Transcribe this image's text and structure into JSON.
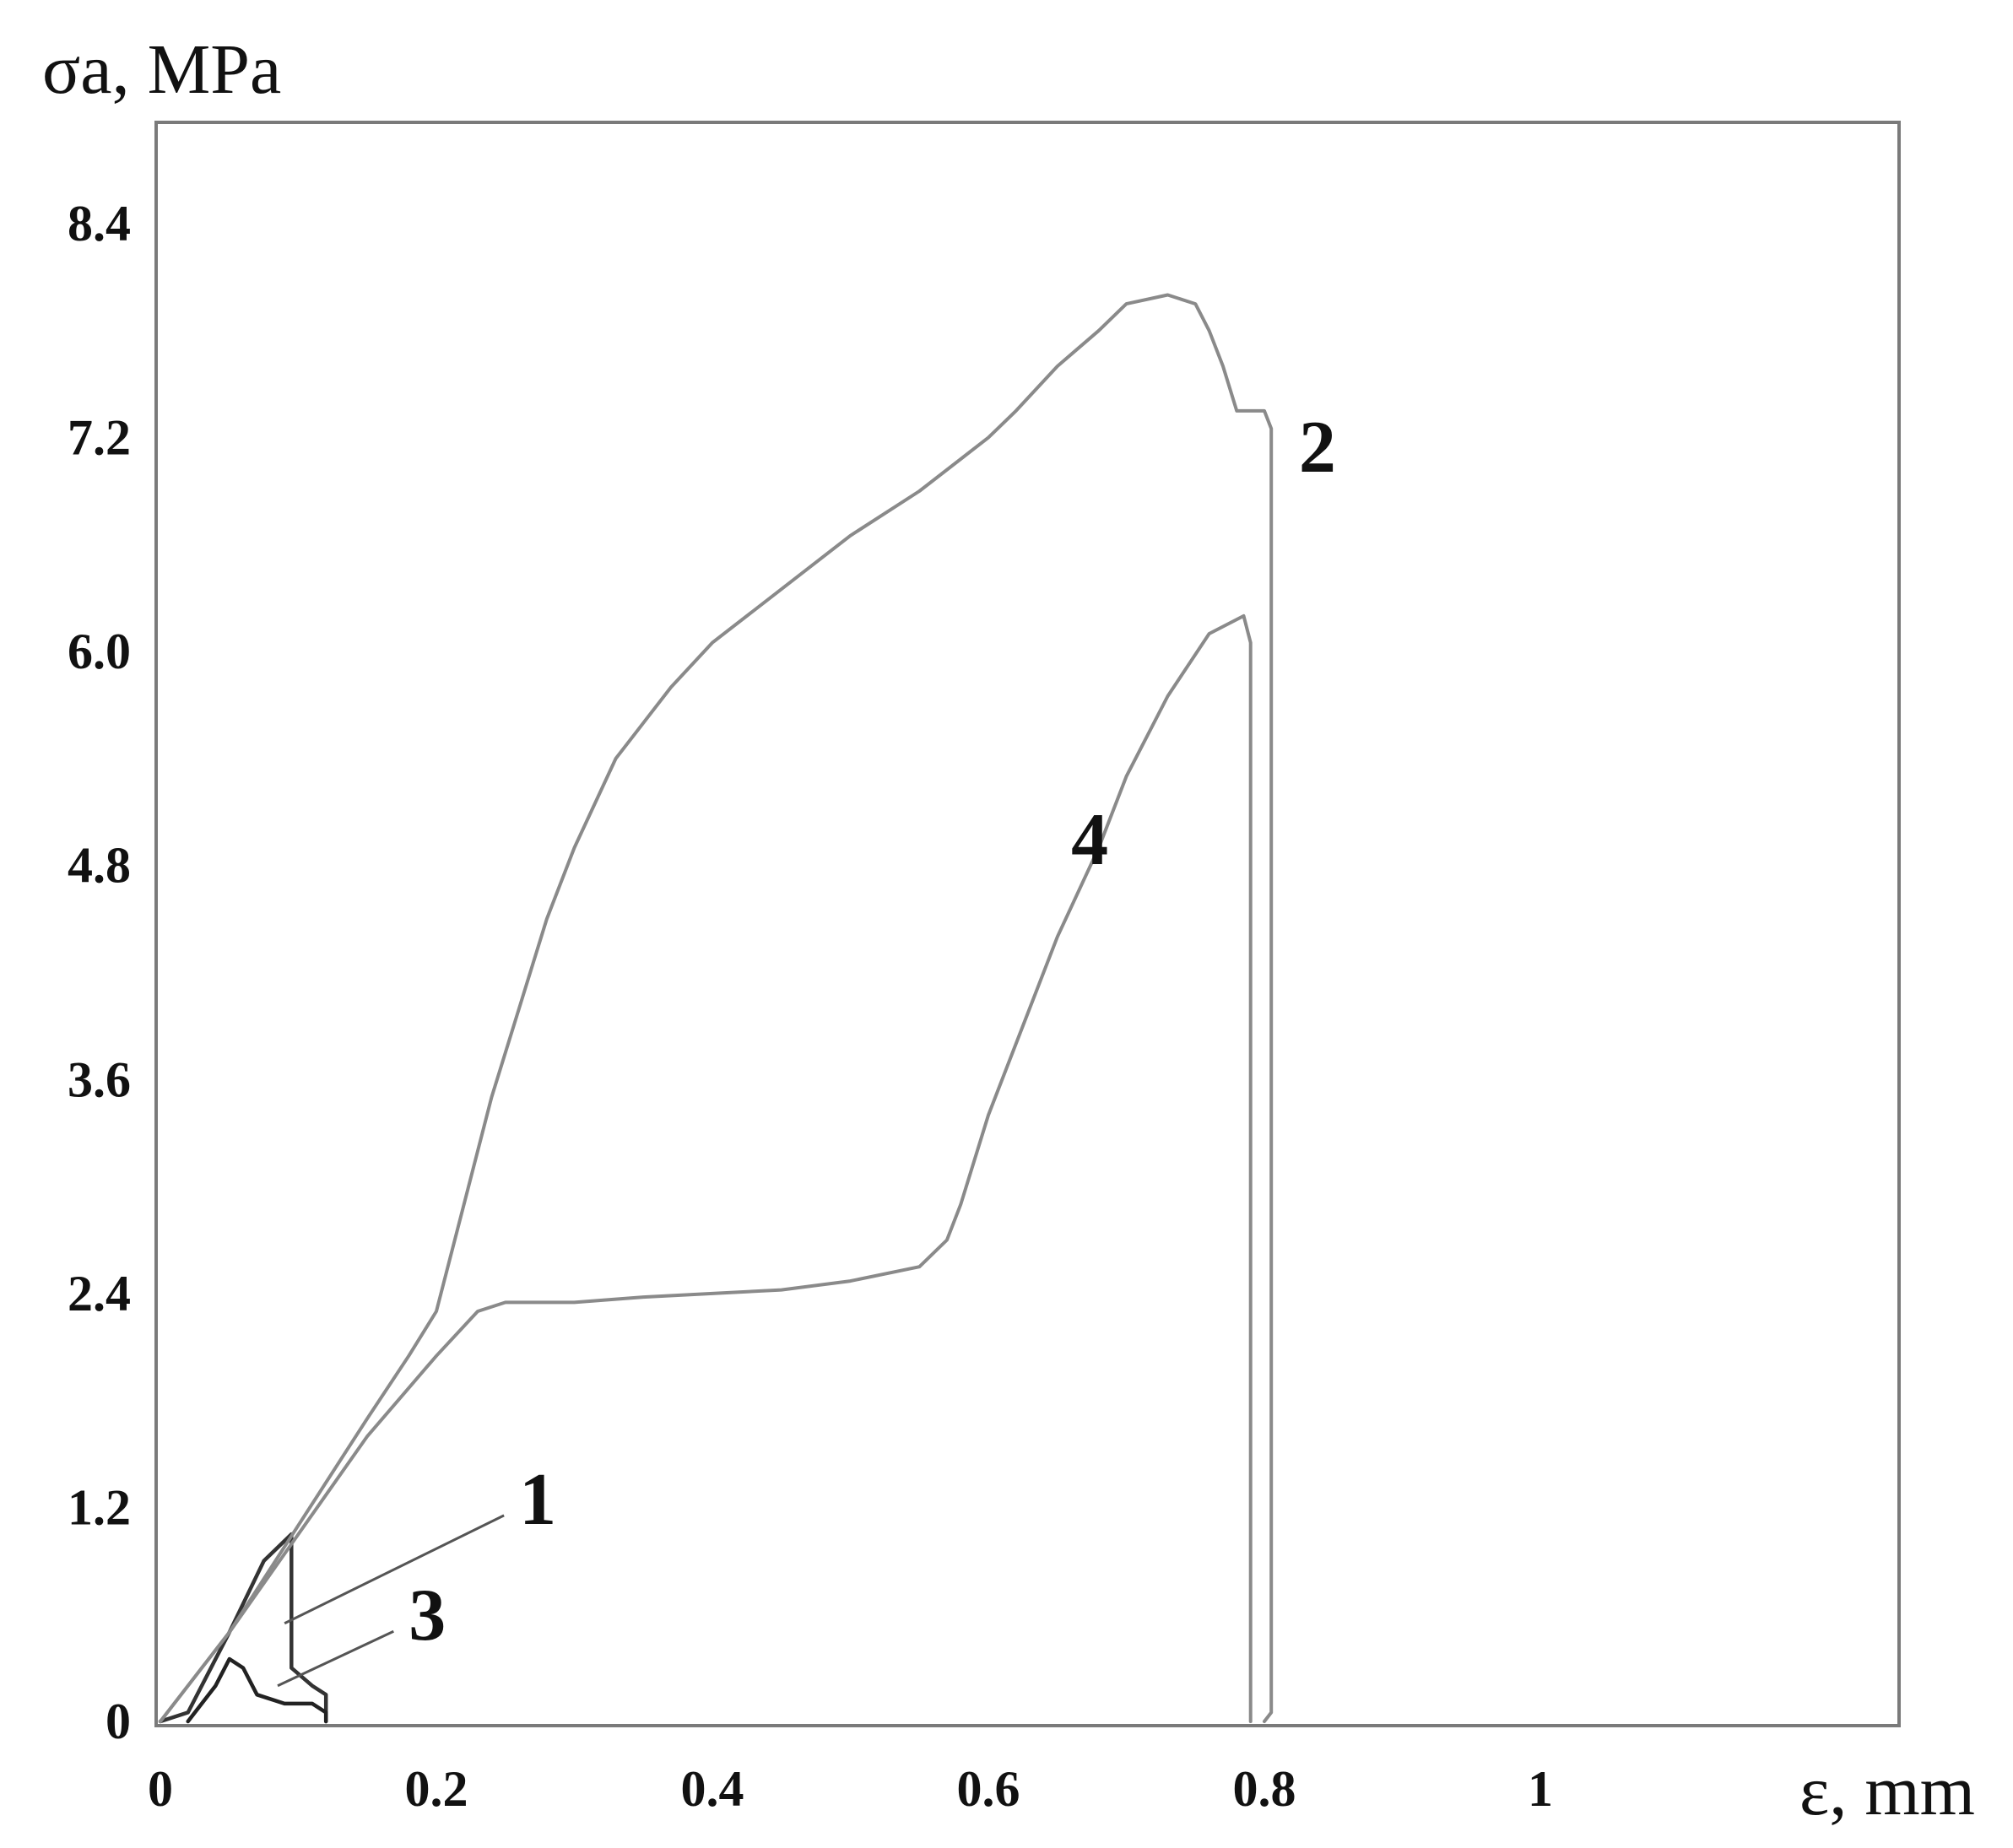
{
  "chart_data": {
    "type": "line",
    "ylabel": "σa, MPa",
    "xlabel": "ε, mm",
    "xlim": [
      0,
      1.2
    ],
    "ylim": [
      0,
      8.8
    ],
    "x_ticks": [
      {
        "value": 0,
        "label": "0"
      },
      {
        "value": 0.2,
        "label": "0.2"
      },
      {
        "value": 0.4,
        "label": "0.4"
      },
      {
        "value": 0.6,
        "label": "0.6"
      },
      {
        "value": 0.8,
        "label": "0.8"
      },
      {
        "value": 1.0,
        "label": "1"
      }
    ],
    "y_ticks": [
      {
        "value": 0,
        "label": "0"
      },
      {
        "value": 1.2,
        "label": "1.2"
      },
      {
        "value": 2.4,
        "label": "2.4"
      },
      {
        "value": 3.6,
        "label": "3.6"
      },
      {
        "value": 4.8,
        "label": "4.8"
      },
      {
        "value": 6.0,
        "label": "6.0"
      },
      {
        "value": 7.2,
        "label": "7.2"
      },
      {
        "value": 8.4,
        "label": "8.4"
      }
    ],
    "grid": false,
    "series": [
      {
        "label": "1",
        "color": "#333333",
        "label_at": [
          0.26,
          1.25
        ],
        "leader_to": [
          0.09,
          0.55
        ],
        "points": [
          [
            0,
            0
          ],
          [
            0.02,
            0.05
          ],
          [
            0.05,
            0.5
          ],
          [
            0.075,
            0.9
          ],
          [
            0.095,
            1.05
          ],
          [
            0.095,
            0.6
          ],
          [
            0.095,
            0.3
          ],
          [
            0.11,
            0.2
          ],
          [
            0.12,
            0.15
          ],
          [
            0.12,
            0
          ]
        ]
      },
      {
        "label": "2",
        "color": "#8a8a8a",
        "label_at": [
          0.825,
          7.15
        ],
        "points": [
          [
            0,
            0
          ],
          [
            0.05,
            0.5
          ],
          [
            0.1,
            1.1
          ],
          [
            0.15,
            1.7
          ],
          [
            0.18,
            2.05
          ],
          [
            0.2,
            2.3
          ],
          [
            0.22,
            2.9
          ],
          [
            0.24,
            3.5
          ],
          [
            0.26,
            4.0
          ],
          [
            0.28,
            4.5
          ],
          [
            0.3,
            4.9
          ],
          [
            0.33,
            5.4
          ],
          [
            0.37,
            5.8
          ],
          [
            0.4,
            6.05
          ],
          [
            0.45,
            6.35
          ],
          [
            0.5,
            6.65
          ],
          [
            0.55,
            6.9
          ],
          [
            0.6,
            7.2
          ],
          [
            0.62,
            7.35
          ],
          [
            0.65,
            7.6
          ],
          [
            0.68,
            7.8
          ],
          [
            0.7,
            7.95
          ],
          [
            0.73,
            8.0
          ],
          [
            0.75,
            7.95
          ],
          [
            0.76,
            7.8
          ],
          [
            0.77,
            7.6
          ],
          [
            0.78,
            7.35
          ],
          [
            0.8,
            7.35
          ],
          [
            0.805,
            7.25
          ],
          [
            0.805,
            6.0
          ],
          [
            0.805,
            0.05
          ],
          [
            0.8,
            0.0
          ]
        ]
      },
      {
        "label": "3",
        "color": "#222222",
        "label_at": [
          0.18,
          0.6
        ],
        "leader_to": [
          0.085,
          0.2
        ],
        "points": [
          [
            0.02,
            0
          ],
          [
            0.04,
            0.2
          ],
          [
            0.05,
            0.35
          ],
          [
            0.06,
            0.3
          ],
          [
            0.07,
            0.15
          ],
          [
            0.09,
            0.1
          ],
          [
            0.11,
            0.1
          ],
          [
            0.12,
            0.05
          ],
          [
            0.12,
            0
          ]
        ]
      },
      {
        "label": "4",
        "color": "#8a8a8a",
        "label_at": [
          0.66,
          4.95
        ],
        "points": [
          [
            0,
            0
          ],
          [
            0.05,
            0.5
          ],
          [
            0.1,
            1.05
          ],
          [
            0.15,
            1.6
          ],
          [
            0.2,
            2.05
          ],
          [
            0.23,
            2.3
          ],
          [
            0.25,
            2.35
          ],
          [
            0.3,
            2.35
          ],
          [
            0.35,
            2.38
          ],
          [
            0.4,
            2.4
          ],
          [
            0.45,
            2.42
          ],
          [
            0.5,
            2.47
          ],
          [
            0.55,
            2.55
          ],
          [
            0.57,
            2.7
          ],
          [
            0.58,
            2.9
          ],
          [
            0.6,
            3.4
          ],
          [
            0.62,
            3.8
          ],
          [
            0.65,
            4.4
          ],
          [
            0.68,
            4.9
          ],
          [
            0.7,
            5.3
          ],
          [
            0.73,
            5.75
          ],
          [
            0.76,
            6.1
          ],
          [
            0.785,
            6.2
          ],
          [
            0.79,
            6.05
          ],
          [
            0.79,
            5.5
          ],
          [
            0.79,
            3.0
          ],
          [
            0.79,
            0.0
          ]
        ]
      }
    ]
  }
}
